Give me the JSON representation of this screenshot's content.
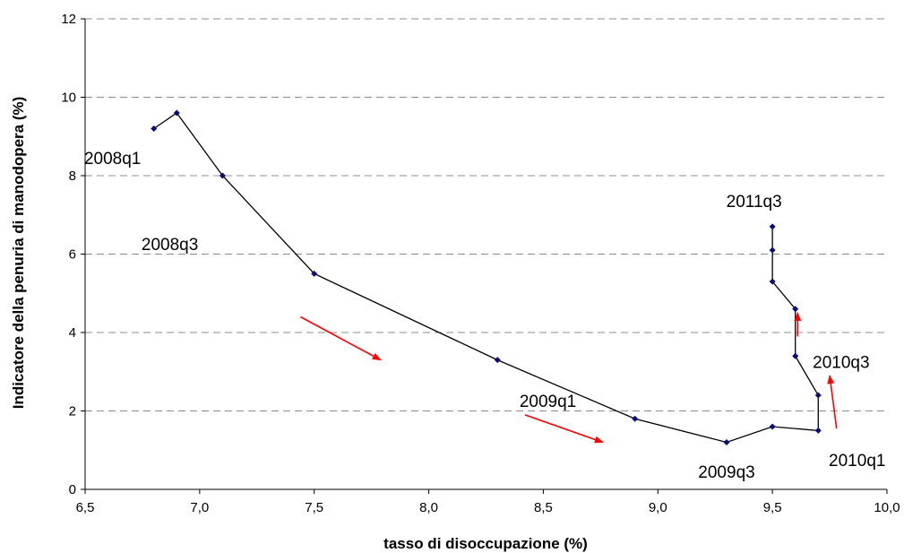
{
  "chart_data": {
    "type": "line",
    "xlabel": "tasso di disoccupazione (%)",
    "ylabel": "Indicatore della penuria di manodopera (%)",
    "xlim": [
      6.5,
      10.0
    ],
    "ylim": [
      0,
      12
    ],
    "x_ticks": [
      "6,5",
      "7,0",
      "7,5",
      "8,0",
      "8,5",
      "9,0",
      "9,5",
      "10,0"
    ],
    "y_ticks": [
      "0",
      "2",
      "4",
      "6",
      "8",
      "10",
      "12"
    ],
    "grid": "horizontal dashed",
    "series": [
      {
        "points": [
          [
            6.8,
            9.2
          ],
          [
            6.9,
            9.6
          ],
          [
            7.1,
            8.0
          ],
          [
            7.5,
            5.5
          ],
          [
            8.3,
            3.3
          ],
          [
            8.9,
            1.8
          ],
          [
            9.3,
            1.2
          ],
          [
            9.5,
            1.6
          ],
          [
            9.7,
            1.5
          ],
          [
            9.7,
            2.4
          ],
          [
            9.6,
            3.4
          ],
          [
            9.6,
            4.6
          ],
          [
            9.5,
            5.3
          ],
          [
            9.5,
            6.1
          ],
          [
            9.5,
            6.7
          ]
        ],
        "color": "#000000",
        "marker_color": "#0a0a78"
      }
    ],
    "annotations": [
      {
        "text": "2008q1",
        "x": 6.62,
        "y": 8.3
      },
      {
        "text": "2008q3",
        "x": 6.87,
        "y": 6.1
      },
      {
        "text": "2009q1",
        "x": 8.52,
        "y": 2.1
      },
      {
        "text": "2009q3",
        "x": 9.3,
        "y": 0.3
      },
      {
        "text": "2010q1",
        "x": 9.87,
        "y": 0.6
      },
      {
        "text": "2010q3",
        "x": 9.8,
        "y": 3.1
      },
      {
        "text": "2011q3",
        "x": 9.42,
        "y": 7.2
      }
    ],
    "arrows": [
      {
        "from": [
          7.44,
          4.4
        ],
        "to": [
          7.79,
          3.3
        ]
      },
      {
        "from": [
          8.42,
          1.9
        ],
        "to": [
          8.76,
          1.2
        ]
      },
      {
        "from": [
          9.78,
          1.55
        ],
        "to": [
          9.75,
          2.9
        ]
      },
      {
        "from": [
          9.61,
          3.9
        ],
        "to": [
          9.61,
          4.5
        ]
      }
    ],
    "colors": {
      "series": "#000000",
      "marker": "#0a0a78",
      "arrow": "#ff0000",
      "grid": "#8c8c8c"
    }
  }
}
